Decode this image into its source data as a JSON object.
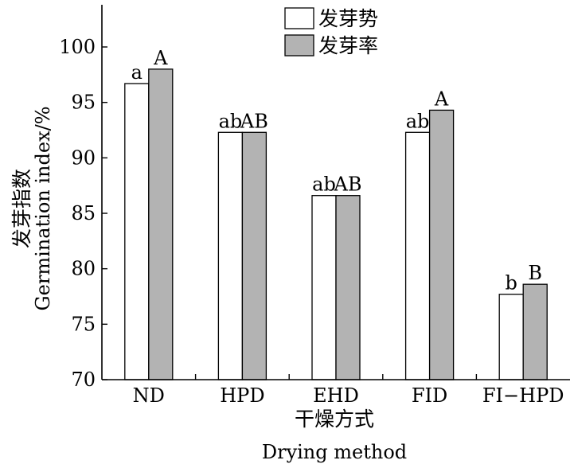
{
  "chart_data": {
    "type": "bar",
    "categories": [
      "ND",
      "HPD",
      "EHD",
      "FID",
      "FI−HPD"
    ],
    "series": [
      {
        "name": "发芽势",
        "values": [
          96.7,
          92.3,
          86.6,
          92.3,
          77.7
        ],
        "sig_labels": [
          "a",
          "ab",
          "ab",
          "ab",
          "b"
        ],
        "color": "#ffffff"
      },
      {
        "name": "发芽率",
        "values": [
          98.0,
          92.3,
          86.6,
          94.3,
          78.6
        ],
        "sig_labels": [
          "A",
          "AB",
          "AB",
          "A",
          "B"
        ],
        "color": "#b3b3b3"
      }
    ],
    "xlabel_cn": "干燥方式",
    "xlabel_en": "Drying method",
    "ylabel_cn": "发芽指数",
    "ylabel_en": "Germination index/%",
    "ylim": [
      70,
      100
    ],
    "yticks": [
      70,
      75,
      80,
      85,
      90,
      95,
      100
    ],
    "grid": false,
    "legend_position": "top-center"
  }
}
